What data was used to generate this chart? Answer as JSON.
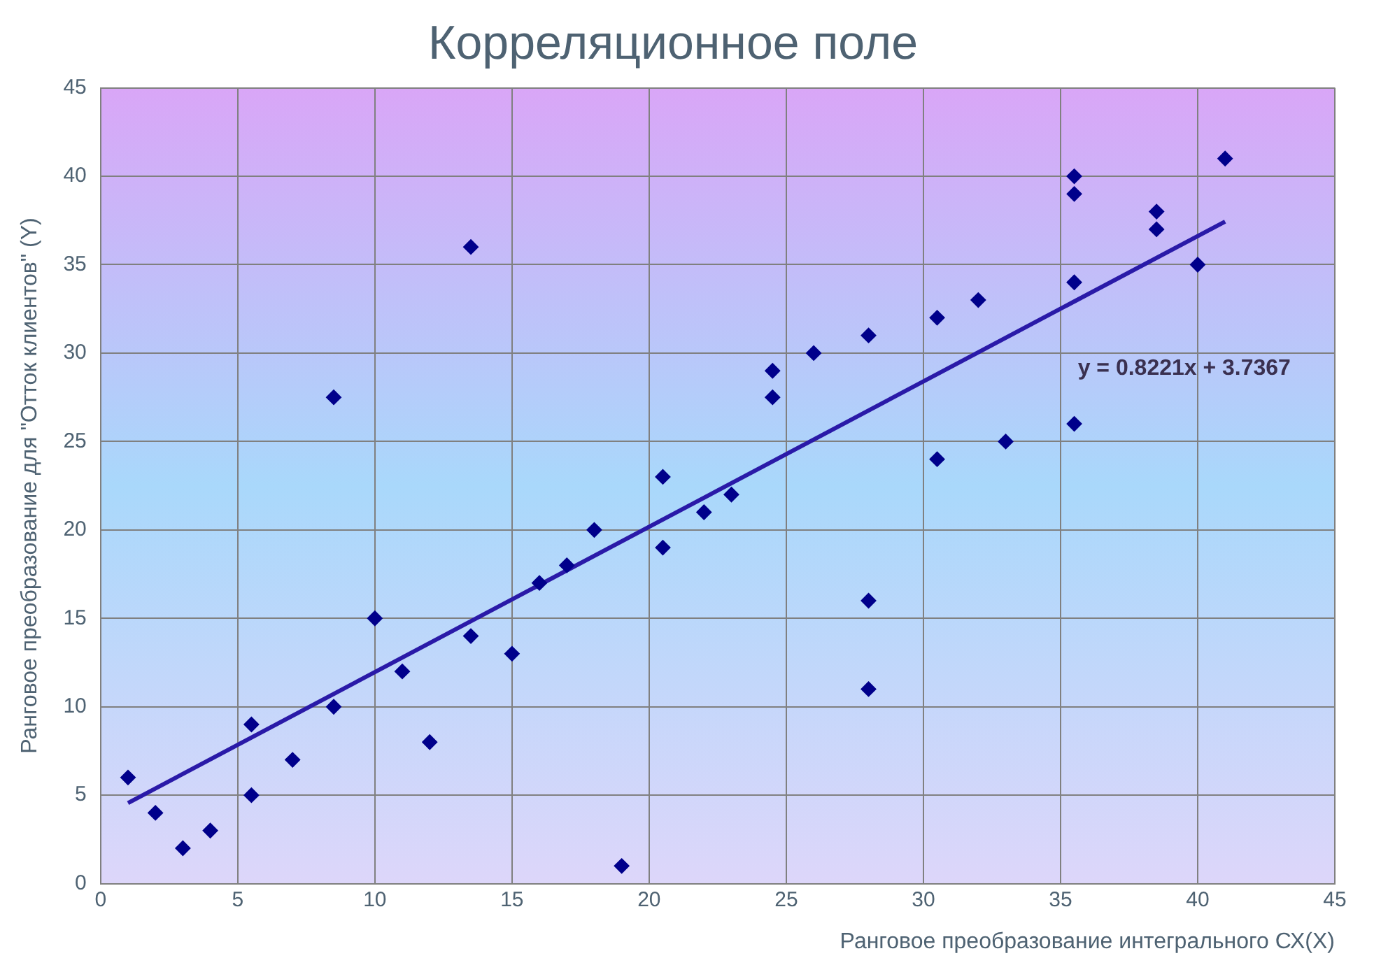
{
  "chart_data": {
    "type": "scatter",
    "title": "Корреляционное поле",
    "xlabel": "Ранговое преобразование интегрального СХ(Х)",
    "ylabel": "Ранговое преобразование для \"Отток клиентов\" (Y)",
    "series": [
      {
        "type": "scatter",
        "color": "#00008b",
        "marker": "diamond",
        "x": [
          1,
          2,
          3,
          4,
          5.5,
          5.5,
          7,
          8.5,
          8.5,
          10,
          11,
          12,
          13.5,
          13.5,
          15,
          16,
          17,
          18,
          19,
          20.5,
          20.5,
          22,
          23,
          24.5,
          24.5,
          26,
          28,
          28,
          28,
          30.5,
          30.5,
          32,
          33,
          35.5,
          35.5,
          35.5,
          35.5,
          38.5,
          38.5,
          40,
          41
        ],
        "values": [
          6,
          4,
          2,
          3,
          9,
          5,
          7,
          27.5,
          10,
          15,
          12,
          8,
          36,
          14,
          13,
          17,
          18,
          20,
          1,
          23,
          19,
          21,
          22,
          29,
          27.5,
          30,
          31,
          16,
          11,
          32,
          24,
          33,
          25,
          40,
          39,
          34,
          26,
          38,
          37,
          35,
          41
        ]
      },
      {
        "type": "line",
        "color": "#2a1aa8",
        "marker": "none",
        "x": [
          1,
          41
        ],
        "values": [
          4.56,
          37.44
        ]
      }
    ],
    "annotations": [
      "y = 0.8221x + 3.7367"
    ],
    "xlim": [
      0,
      45
    ],
    "xticks": [
      0,
      5,
      10,
      15,
      20,
      25,
      30,
      35,
      40,
      45
    ],
    "ylim": [
      0,
      45
    ],
    "yticks": [
      0,
      5,
      10,
      15,
      20,
      25,
      30,
      35,
      40,
      45
    ],
    "grid": true,
    "legend": false
  }
}
